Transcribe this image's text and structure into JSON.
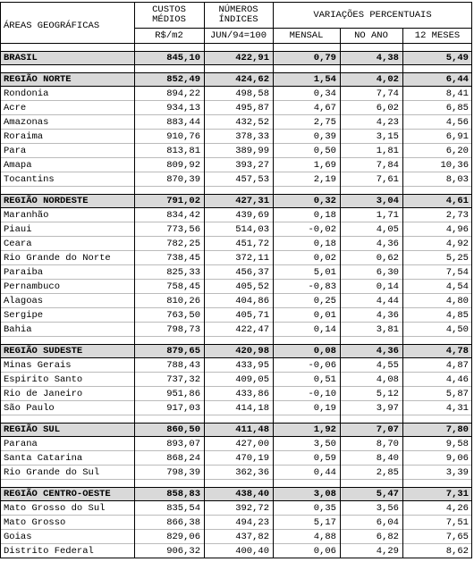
{
  "header": {
    "area": "ÁREAS GEOGRÁFICAS",
    "custos": [
      "CUSTOS",
      "MÉDIOS"
    ],
    "custos_unit": "R$/m2",
    "indices": [
      "NÚMEROS",
      "ÍNDICES"
    ],
    "indices_unit": "JUN/94=100",
    "variacoes": "VARIAÇÕES PERCENTUAIS",
    "mensal": "MENSAL",
    "no_ano": "NO ANO",
    "doze_meses": "12 MESES"
  },
  "sections": [
    {
      "rows": [
        [
          "BRASIL",
          "845,10",
          "422,91",
          "0,79",
          "4,38",
          "5,49"
        ]
      ]
    },
    {
      "rows": [
        [
          "REGIÃO NORTE",
          "852,49",
          "424,62",
          "1,54",
          "4,02",
          "6,44"
        ],
        [
          "Rondonia",
          "894,22",
          "498,58",
          "0,34",
          "7,74",
          "8,41"
        ],
        [
          "Acre",
          "934,13",
          "495,87",
          "4,67",
          "6,02",
          "6,85"
        ],
        [
          "Amazonas",
          "883,44",
          "432,52",
          "2,75",
          "4,23",
          "4,56"
        ],
        [
          "Roraima",
          "910,76",
          "378,33",
          "0,39",
          "3,15",
          "6,91"
        ],
        [
          "Para",
          "813,81",
          "389,99",
          "0,50",
          "1,81",
          "6,20"
        ],
        [
          "Amapa",
          "809,92",
          "393,27",
          "1,69",
          "7,84",
          "10,36"
        ],
        [
          "Tocantins",
          "870,39",
          "457,53",
          "2,19",
          "7,61",
          "8,03"
        ]
      ]
    },
    {
      "rows": [
        [
          "REGIÃO NORDESTE",
          "791,02",
          "427,31",
          "0,32",
          "3,04",
          "4,61"
        ],
        [
          "Maranhão",
          "834,42",
          "439,69",
          "0,18",
          "1,71",
          "2,73"
        ],
        [
          "Piaui",
          "773,56",
          "514,03",
          "-0,02",
          "4,05",
          "4,96"
        ],
        [
          "Ceara",
          "782,25",
          "451,72",
          "0,18",
          "4,36",
          "4,92"
        ],
        [
          "Rio Grande do Norte",
          "738,45",
          "372,11",
          "0,02",
          "0,62",
          "5,25"
        ],
        [
          "Paraiba",
          "825,33",
          "456,37",
          "5,01",
          "6,30",
          "7,54"
        ],
        [
          "Pernambuco",
          "758,45",
          "405,52",
          "-0,83",
          "0,14",
          "4,54"
        ],
        [
          "Alagoas",
          "810,26",
          "404,86",
          "0,25",
          "4,44",
          "4,80"
        ],
        [
          "Sergipe",
          "763,50",
          "405,71",
          "0,01",
          "4,36",
          "4,85"
        ],
        [
          "Bahia",
          "798,73",
          "422,47",
          "0,14",
          "3,81",
          "4,50"
        ]
      ]
    },
    {
      "rows": [
        [
          "REGIÃO SUDESTE",
          "879,65",
          "420,98",
          "0,08",
          "4,36",
          "4,78"
        ],
        [
          "Minas Gerais",
          "788,43",
          "433,95",
          "-0,06",
          "4,55",
          "4,87"
        ],
        [
          "Espirito Santo",
          "737,32",
          "409,05",
          "0,51",
          "4,08",
          "4,46"
        ],
        [
          "Rio de Janeiro",
          "951,86",
          "433,86",
          "-0,10",
          "5,12",
          "5,87"
        ],
        [
          "São Paulo",
          "917,03",
          "414,18",
          "0,19",
          "3,97",
          "4,31"
        ]
      ]
    },
    {
      "rows": [
        [
          "REGIÃO SUL",
          "860,50",
          "411,48",
          "1,92",
          "7,07",
          "7,80"
        ],
        [
          "Parana",
          "893,07",
          "427,00",
          "3,50",
          "8,70",
          "9,58"
        ],
        [
          "Santa Catarina",
          "868,24",
          "470,19",
          "0,59",
          "8,40",
          "9,06"
        ],
        [
          "Rio Grande do Sul",
          "798,39",
          "362,36",
          "0,44",
          "2,85",
          "3,39"
        ]
      ]
    },
    {
      "rows": [
        [
          "REGIÃO CENTRO-OESTE",
          "858,83",
          "438,40",
          "3,08",
          "5,47",
          "7,31"
        ],
        [
          "Mato Grosso do Sul",
          "835,54",
          "392,72",
          "0,35",
          "3,56",
          "4,26"
        ],
        [
          "Mato Grosso",
          "866,38",
          "494,23",
          "5,17",
          "6,04",
          "7,51"
        ],
        [
          "Goias",
          "829,06",
          "437,82",
          "4,88",
          "6,82",
          "7,65"
        ],
        [
          "Distrito Federal",
          "906,32",
          "400,40",
          "0,06",
          "4,29",
          "8,62"
        ]
      ]
    }
  ]
}
